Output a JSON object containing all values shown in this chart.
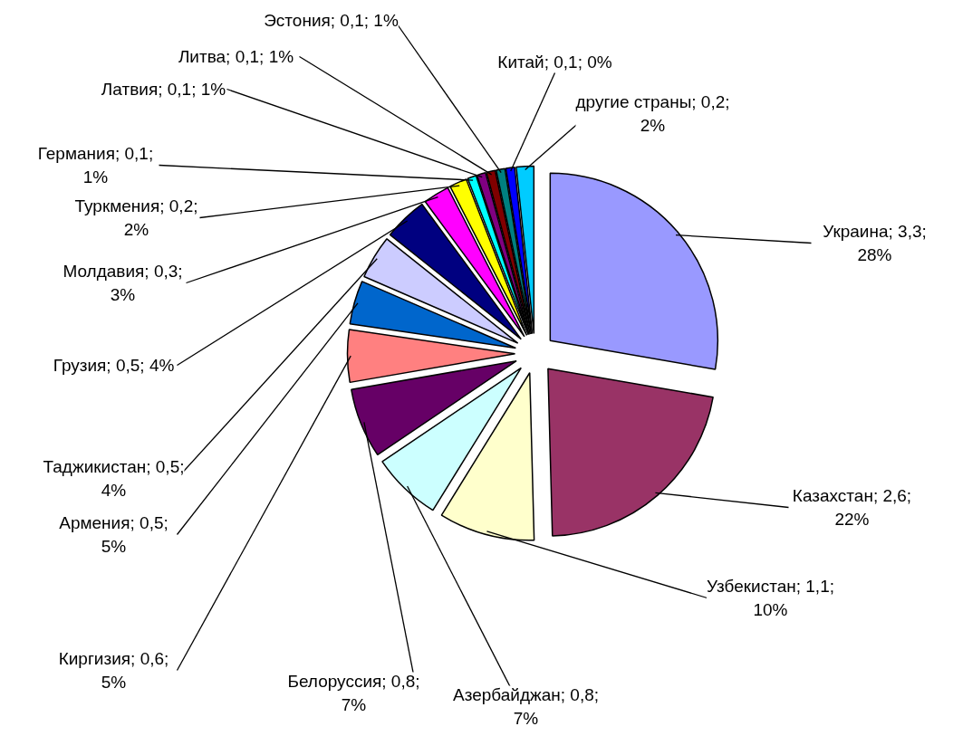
{
  "chart_data": {
    "type": "pie",
    "categories": [
      "Украина",
      "Казахстан",
      "Узбекистан",
      "Азербайджан",
      "Белоруссия",
      "Киргизия",
      "Армения",
      "Таджикистан",
      "Грузия",
      "Молдавия",
      "Туркмения",
      "Германия",
      "Латвия",
      "Литва",
      "Эстония",
      "Китай",
      "другие страны"
    ],
    "values": [
      3.3,
      2.6,
      1.1,
      0.8,
      0.8,
      0.6,
      0.5,
      0.5,
      0.5,
      0.3,
      0.2,
      0.1,
      0.1,
      0.1,
      0.1,
      0.1,
      0.2
    ],
    "value_labels": [
      "3,3; 28%",
      "2,6; 22%",
      "1,1; 10%",
      "0,8; 7%",
      "0,8; 7%",
      "0,6; 5%",
      "0,5; 5%",
      "0,5; 4%",
      "0,5; 4%",
      "0,3; 3%",
      "0,2; 2%",
      "0,1; 1%",
      "0,1; 1%",
      "0,1; 1%",
      "0,1; 1%",
      "0,1; 0%",
      "0,2; 2%"
    ],
    "colors": [
      "#9999ff",
      "#993366",
      "#ffffcc",
      "#ccffff",
      "#660066",
      "#ff8080",
      "#0066cc",
      "#ccccff",
      "#000080",
      "#ff00ff",
      "#ffff00",
      "#00ffff",
      "#800080",
      "#800000",
      "#008080",
      "#0000ff",
      "#00ccff"
    ]
  }
}
